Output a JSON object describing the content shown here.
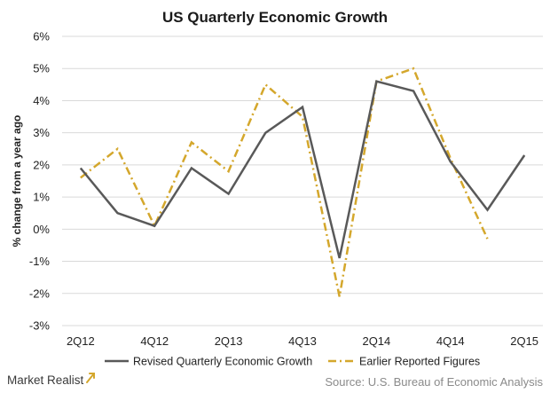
{
  "branding": {
    "logo_text": "Market Realist",
    "source_text": "Source: U.S. Bureau of Economic Analysis"
  },
  "chart_data": {
    "type": "line",
    "title": "US Quarterly Economic Growth",
    "xlabel": "",
    "ylabel": "% change from a year ago",
    "ylim": [
      -3,
      6
    ],
    "y_ticks": [
      "-3%",
      "-2%",
      "-1%",
      "0%",
      "1%",
      "2%",
      "3%",
      "4%",
      "5%",
      "6%"
    ],
    "y_tick_values": [
      -3,
      -2,
      -1,
      0,
      1,
      2,
      3,
      4,
      5,
      6
    ],
    "categories": [
      "2Q12",
      "3Q12",
      "4Q12",
      "1Q13",
      "2Q13",
      "3Q13",
      "4Q13",
      "1Q14",
      "2Q14",
      "3Q14",
      "4Q14",
      "1Q15",
      "2Q15"
    ],
    "x_tick_labels": [
      "2Q12",
      "4Q12",
      "2Q13",
      "4Q13",
      "2Q14",
      "4Q14",
      "2Q15"
    ],
    "grid": true,
    "legend_position": "bottom",
    "series": [
      {
        "name": "Revised Quarterly Economic Growth",
        "style": "solid",
        "color": "#595959",
        "values": [
          1.9,
          0.5,
          0.1,
          1.9,
          1.1,
          3.0,
          3.8,
          -0.9,
          4.6,
          4.3,
          2.1,
          0.6,
          2.3
        ]
      },
      {
        "name": "Earlier Reported Figures",
        "style": "dash-dot",
        "color": "#d4a72c",
        "values": [
          1.6,
          2.5,
          0.1,
          2.7,
          1.8,
          4.5,
          3.5,
          -2.1,
          4.6,
          5.0,
          2.2,
          -0.3,
          null
        ]
      }
    ]
  }
}
